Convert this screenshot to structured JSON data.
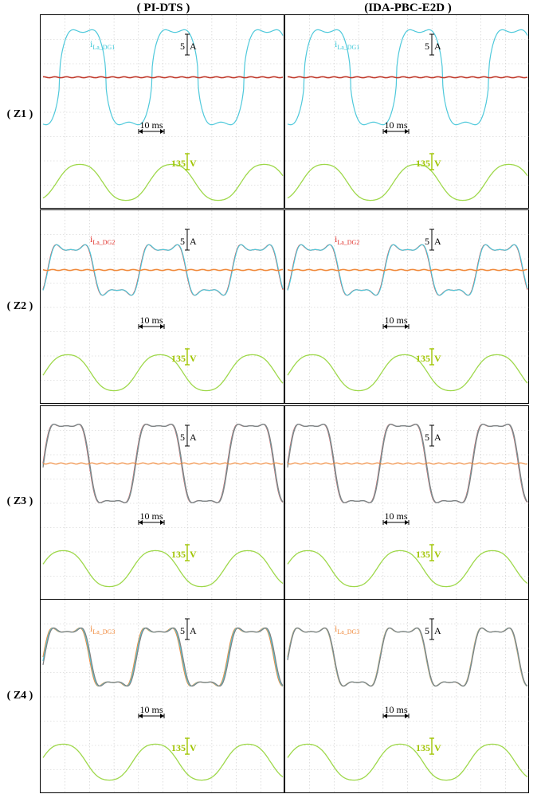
{
  "columns": [
    {
      "title": "( PI-DTS )"
    },
    {
      "title": "(IDA-PBC-E2D )"
    }
  ],
  "rows": [
    {
      "label": "( Z1 )",
      "trace_label": "i",
      "trace_sub": "La_DG1",
      "label_color": "#3cc8d8"
    },
    {
      "label": "( Z2 )",
      "trace_label": "i",
      "trace_sub": "La_DG2",
      "label_color": "#e0302a"
    },
    {
      "label": "( Z3 )",
      "trace_label": "",
      "trace_sub": "",
      "label_color": "#000000"
    },
    {
      "label": "( Z4 )",
      "trace_label": "i",
      "trace_sub": "La_DG3",
      "label_color": "#f08a3c"
    }
  ],
  "scales": {
    "current": "5 A",
    "current_num": "5",
    "current_unit": "A",
    "time": "10 ms",
    "voltage": "135 V",
    "voltage_num": "135",
    "voltage_unit": "V"
  },
  "colors": {
    "dg1": "#4fc9db",
    "dg2": "#e0302a",
    "dg3": "#f08a3c",
    "dg_other": "#808080",
    "voltage": "#9ed84a",
    "voltage_marker": "#a0c400",
    "grid": "#c8c8c8"
  },
  "chart_data": [
    {
      "panel": "PI-DTS Z1",
      "type": "line",
      "x_unit": "ms",
      "period_ms": 20,
      "visible_periods": 2.6,
      "series": [
        {
          "name": "i La_DG1",
          "peak_A": 5.5
        },
        {
          "name": "",
          "peak_A": 0.1
        },
        {
          "name": "",
          "peak_V": 135
        }
      ]
    },
    {
      "panel": "IDA-PBC-E2D Z1",
      "type": "line",
      "x_unit": "ms",
      "period_ms": 20,
      "visible_periods": 2.6,
      "series": [
        {
          "name": "i La_DG1",
          "peak_A": 5.5
        },
        {
          "name": "",
          "peak_A": 0.1
        },
        {
          "name": "",
          "peak_V": 135
        }
      ]
    },
    {
      "panel": "PI-DTS Z2",
      "type": "line",
      "x_unit": "ms",
      "period_ms": 20,
      "visible_periods": 2.6,
      "series": [
        {
          "name": "i La_DG2",
          "peak_A": 3.3
        },
        {
          "name": "",
          "peak_A": 3.3
        },
        {
          "name": "",
          "peak_A": 0.1
        },
        {
          "name": "",
          "peak_V": 135
        }
      ]
    },
    {
      "panel": "IDA-PBC-E2D Z2",
      "type": "line",
      "x_unit": "ms",
      "period_ms": 20,
      "visible_periods": 2.6,
      "series": [
        {
          "name": "i La_DG2",
          "peak_A": 3.3
        },
        {
          "name": "",
          "peak_A": 3.3
        },
        {
          "name": "",
          "peak_A": 0.1
        },
        {
          "name": "",
          "peak_V": 135
        }
      ]
    },
    {
      "panel": "PI-DTS Z3",
      "type": "line",
      "x_unit": "ms",
      "period_ms": 20,
      "visible_periods": 2.6,
      "series": [
        {
          "name": "",
          "peak_A": 5.5
        },
        {
          "name": "",
          "peak_A": 5.5
        },
        {
          "name": "",
          "peak_A": 5.5
        },
        {
          "name": "",
          "peak_V": 135
        }
      ]
    },
    {
      "panel": "IDA-PBC-E2D Z3",
      "type": "line",
      "x_unit": "ms",
      "period_ms": 20,
      "visible_periods": 2.6,
      "series": [
        {
          "name": "",
          "peak_A": 5.5
        },
        {
          "name": "",
          "peak_A": 5.5
        },
        {
          "name": "",
          "peak_A": 5.5
        },
        {
          "name": "",
          "peak_V": 135
        }
      ]
    },
    {
      "panel": "PI-DTS Z4",
      "type": "line",
      "x_unit": "ms",
      "period_ms": 20,
      "visible_periods": 2.6,
      "series": [
        {
          "name": "i La_DG3",
          "peak_A": 4.0
        },
        {
          "name": "",
          "peak_A": 4.0
        },
        {
          "name": "",
          "peak_A": 4.0
        },
        {
          "name": "",
          "peak_V": 135
        }
      ]
    },
    {
      "panel": "IDA-PBC-E2D Z4",
      "type": "line",
      "x_unit": "ms",
      "period_ms": 20,
      "visible_periods": 2.6,
      "series": [
        {
          "name": "i La_DG3",
          "peak_A": 4.0
        },
        {
          "name": "",
          "peak_A": 4.0
        },
        {
          "name": "",
          "peak_A": 4.0
        },
        {
          "name": "",
          "peak_V": 135
        }
      ]
    }
  ]
}
